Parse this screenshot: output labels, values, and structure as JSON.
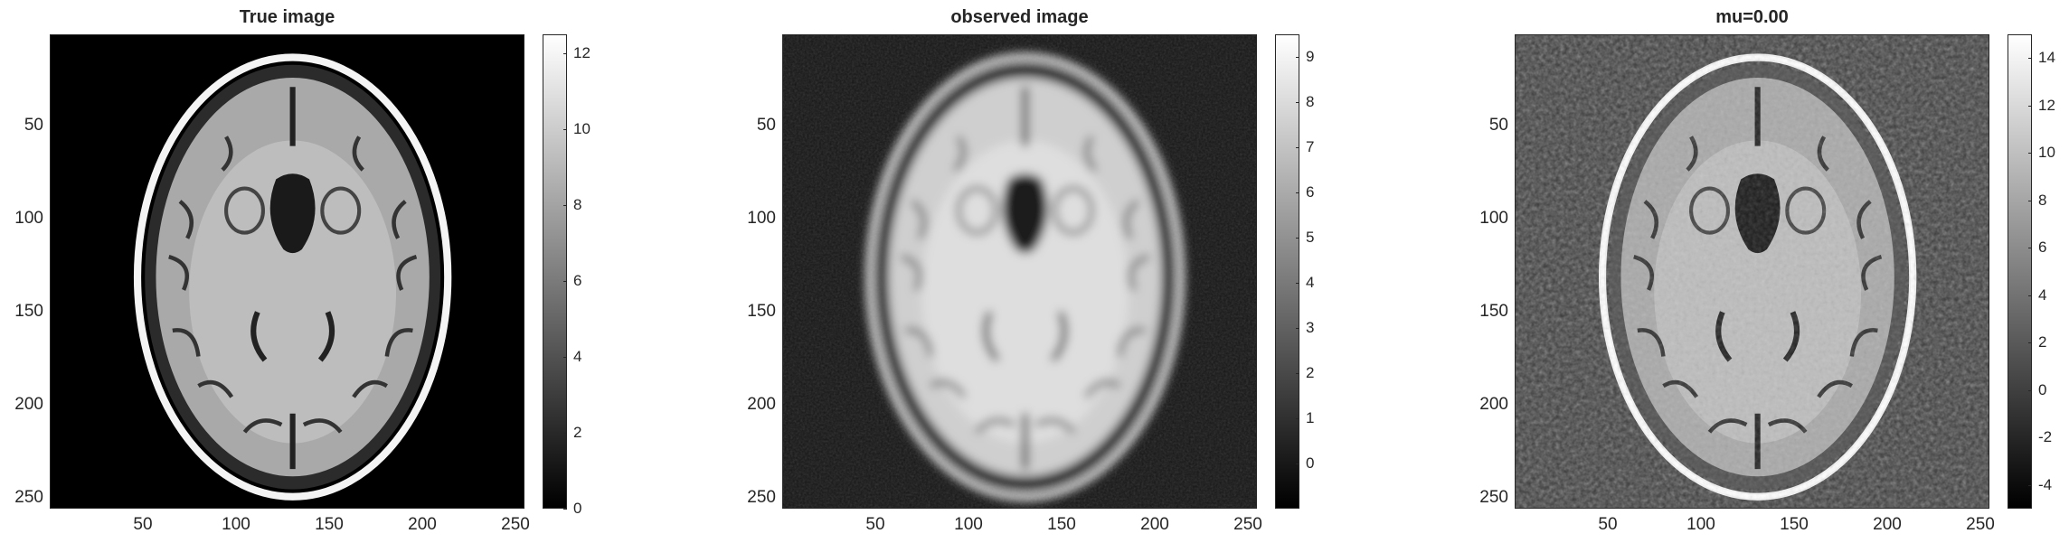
{
  "panels": [
    {
      "title": "True image",
      "xticks": [
        "50",
        "100",
        "150",
        "200",
        "250"
      ],
      "yticks": [
        "50",
        "100",
        "150",
        "200",
        "250"
      ],
      "colorbar": {
        "range": [
          0,
          12.5
        ],
        "ticks": [
          "0",
          "2",
          "4",
          "6",
          "8",
          "10",
          "12"
        ],
        "tick_values": [
          0,
          2,
          4,
          6,
          8,
          10,
          12
        ]
      },
      "style": "sharp"
    },
    {
      "title": "observed image",
      "xticks": [
        "50",
        "100",
        "150",
        "200",
        "250"
      ],
      "yticks": [
        "50",
        "100",
        "150",
        "200",
        "250"
      ],
      "colorbar": {
        "range": [
          -1,
          9.5
        ],
        "ticks": [
          "0",
          "1",
          "2",
          "3",
          "4",
          "5",
          "6",
          "7",
          "8",
          "9"
        ],
        "tick_values": [
          0,
          1,
          2,
          3,
          4,
          5,
          6,
          7,
          8,
          9
        ]
      },
      "style": "blurred"
    },
    {
      "title": "mu=0.00",
      "xticks": [
        "50",
        "100",
        "150",
        "200",
        "250"
      ],
      "yticks": [
        "50",
        "100",
        "150",
        "200",
        "250"
      ],
      "colorbar": {
        "range": [
          -5,
          15
        ],
        "ticks": [
          "-4",
          "-2",
          "0",
          "2",
          "4",
          "6",
          "8",
          "10",
          "12",
          "14"
        ],
        "tick_values": [
          -4,
          -2,
          0,
          2,
          4,
          6,
          8,
          10,
          12,
          14
        ]
      },
      "style": "noisy"
    }
  ]
}
